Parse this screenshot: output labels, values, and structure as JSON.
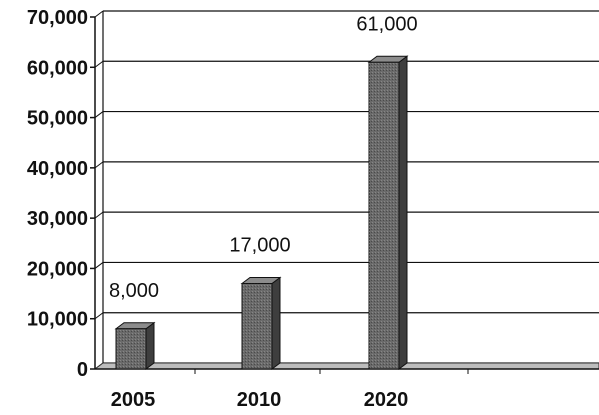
{
  "chart_data": {
    "type": "bar",
    "categories": [
      "2005",
      "2010",
      "2020"
    ],
    "values": [
      8000,
      17000,
      61000
    ],
    "data_labels": [
      "8,000",
      "17,000",
      "61,000"
    ],
    "y_ticks": [
      "0",
      "10,000",
      "20,000",
      "30,000",
      "40,000",
      "50,000",
      "60,000",
      "70,000"
    ],
    "ylim": [
      0,
      70000
    ],
    "grid": true,
    "style": "3d-column",
    "colors": {
      "bar_front": "#6a6a6a",
      "bar_side": "#3e3e3e",
      "bar_top": "#8c8c8c",
      "floor": "#bdbdbd",
      "gridline": "#111111"
    }
  }
}
